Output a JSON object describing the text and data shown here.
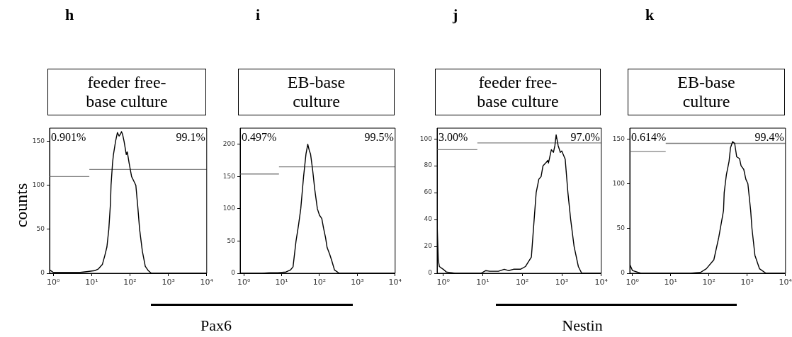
{
  "chart_data": [
    {
      "type": "line",
      "title": "feeder free-base culture",
      "ylabel": "counts",
      "xlabel": "Pax6",
      "log": "x",
      "xlim": [
        0.8,
        10000
      ],
      "ylim": [
        0,
        165
      ],
      "xticks": [
        {
          "value": 1,
          "label": "10⁰"
        },
        {
          "value": 10,
          "label": "10¹"
        },
        {
          "value": 100,
          "label": "10²"
        },
        {
          "value": 1000,
          "label": "10³"
        },
        {
          "value": 10000,
          "label": "10⁴"
        }
      ],
      "yticks": [
        0,
        50,
        100,
        150
      ],
      "annotations": [
        "h",
        "0.901%",
        "99.1%"
      ],
      "series": [
        {
          "color": "#000000",
          "x": [
            0.8,
            1,
            2,
            5,
            8,
            12,
            15,
            19,
            22,
            25,
            28,
            31,
            32,
            35,
            37,
            42,
            47,
            52,
            56,
            60,
            64,
            70,
            80,
            85,
            95,
            110,
            125,
            142,
            160,
            178,
            210,
            250,
            300,
            360,
            1000,
            10000
          ],
          "values": [
            4,
            1,
            1,
            1,
            2,
            3,
            5,
            10,
            20,
            30,
            50,
            80,
            100,
            125,
            135,
            150,
            160,
            156,
            158,
            161,
            158,
            150,
            135,
            138,
            125,
            110,
            105,
            100,
            75,
            50,
            25,
            8,
            3,
            0,
            0,
            0
          ]
        },
        {
          "color": "#808080",
          "x": [
            0.8,
            8.7
          ],
          "values": [
            110,
            110
          ]
        },
        {
          "color": "#808080",
          "x": [
            8.7,
            10000
          ],
          "values": [
            118,
            118
          ]
        }
      ]
    },
    {
      "type": "line",
      "title": "EB-base culture",
      "log": "x",
      "xlim": [
        0.8,
        10000
      ],
      "ylim": [
        0,
        225
      ],
      "xticks": [
        {
          "value": 1,
          "label": "10⁰"
        },
        {
          "value": 10,
          "label": "10¹"
        },
        {
          "value": 100,
          "label": "10²"
        },
        {
          "value": 1000,
          "label": "10³"
        },
        {
          "value": 10000,
          "label": "10⁴"
        }
      ],
      "yticks": [
        0,
        50,
        100,
        150,
        200
      ],
      "annotations": [
        "i",
        "0.497%",
        "99.5%"
      ],
      "series": [
        {
          "color": "#000000",
          "x": [
            0.8,
            3,
            5,
            8,
            13,
            17,
            20,
            24,
            28,
            32,
            38,
            44,
            49,
            54,
            58,
            66,
            75,
            88,
            100,
            115,
            128,
            145,
            159,
            185,
            210,
            250,
            335,
            1000,
            10000
          ],
          "values": [
            0,
            0,
            1,
            1,
            2,
            5,
            10,
            50,
            75,
            100,
            150,
            185,
            200,
            190,
            185,
            160,
            130,
            100,
            90,
            85,
            70,
            55,
            40,
            30,
            20,
            5,
            0,
            0,
            0
          ]
        },
        {
          "color": "#808080",
          "x": [
            0.8,
            8.5
          ],
          "values": [
            154,
            154
          ]
        },
        {
          "color": "#808080",
          "x": [
            8.5,
            10000
          ],
          "values": [
            165,
            165
          ]
        }
      ]
    },
    {
      "type": "line",
      "title": "feeder free-base culture",
      "xlabel": "Nestin",
      "log": "x",
      "xlim": [
        0.7,
        10000
      ],
      "ylim": [
        0,
        108
      ],
      "xticks": [
        {
          "value": 1,
          "label": "10⁰"
        },
        {
          "value": 10,
          "label": "10¹"
        },
        {
          "value": 100,
          "label": "10²"
        },
        {
          "value": 1000,
          "label": "10³"
        },
        {
          "value": 10000,
          "label": "10⁴"
        }
      ],
      "yticks": [
        0,
        20,
        40,
        60,
        80,
        100
      ],
      "annotations": [
        "j",
        "3.00%",
        "97.0%"
      ],
      "series": [
        {
          "color": "#000000",
          "x": [
            0.7,
            0.75,
            0.8,
            1,
            1.2,
            2,
            5,
            9,
            12,
            15,
            25,
            35,
            45,
            60,
            90,
            120,
            170,
            200,
            225,
            263,
            300,
            335,
            390,
            445,
            460,
            545,
            616,
            670,
            720,
            810,
            920,
            1000,
            1220,
            1430,
            1680,
            2050,
            2630,
            3200,
            10000
          ],
          "values": [
            38,
            10,
            5,
            3,
            1,
            0,
            0,
            0,
            2,
            1.5,
            1.5,
            3,
            2,
            3,
            3,
            5,
            12,
            40,
            60,
            70,
            72,
            80,
            82,
            84,
            82,
            92,
            90,
            95,
            103,
            95,
            90,
            91,
            85,
            60,
            40,
            20,
            5,
            0,
            0
          ]
        },
        {
          "color": "#808080",
          "x": [
            0.7,
            7.3
          ],
          "values": [
            92,
            92
          ]
        },
        {
          "color": "#808080",
          "x": [
            7.3,
            10000
          ],
          "values": [
            97,
            97
          ]
        }
      ]
    },
    {
      "type": "line",
      "title": "EB-base culture",
      "log": "x",
      "xlim": [
        0.85,
        10000
      ],
      "ylim": [
        0,
        162
      ],
      "xticks": [
        {
          "value": 1,
          "label": "10⁰"
        },
        {
          "value": 10,
          "label": "10¹"
        },
        {
          "value": 100,
          "label": "10²"
        },
        {
          "value": 1000,
          "label": "10³"
        },
        {
          "value": 10000,
          "label": "10⁴"
        }
      ],
      "yticks": [
        0,
        50,
        100,
        150
      ],
      "annotations": [
        "k",
        "0.614%",
        "99.4%"
      ],
      "series": [
        {
          "color": "#000000",
          "x": [
            0.85,
            1,
            1.66,
            32,
            60,
            85,
            134,
            180,
            240,
            250,
            285,
            335,
            365,
            415,
            470,
            530,
            630,
            690,
            810,
            920,
            1040,
            1230,
            1330,
            1590,
            2100,
            3100,
            10000
          ],
          "values": [
            10,
            3,
            0,
            0,
            1,
            5,
            15,
            40,
            70,
            90,
            110,
            125,
            140,
            147,
            145,
            130,
            128,
            120,
            116,
            105,
            100,
            70,
            50,
            20,
            5,
            0,
            0
          ]
        },
        {
          "color": "#808080",
          "x": [
            0.85,
            7.4
          ],
          "values": [
            136,
            136
          ]
        },
        {
          "color": "#808080",
          "x": [
            7.4,
            10000
          ],
          "values": [
            145,
            145
          ]
        }
      ]
    }
  ]
}
